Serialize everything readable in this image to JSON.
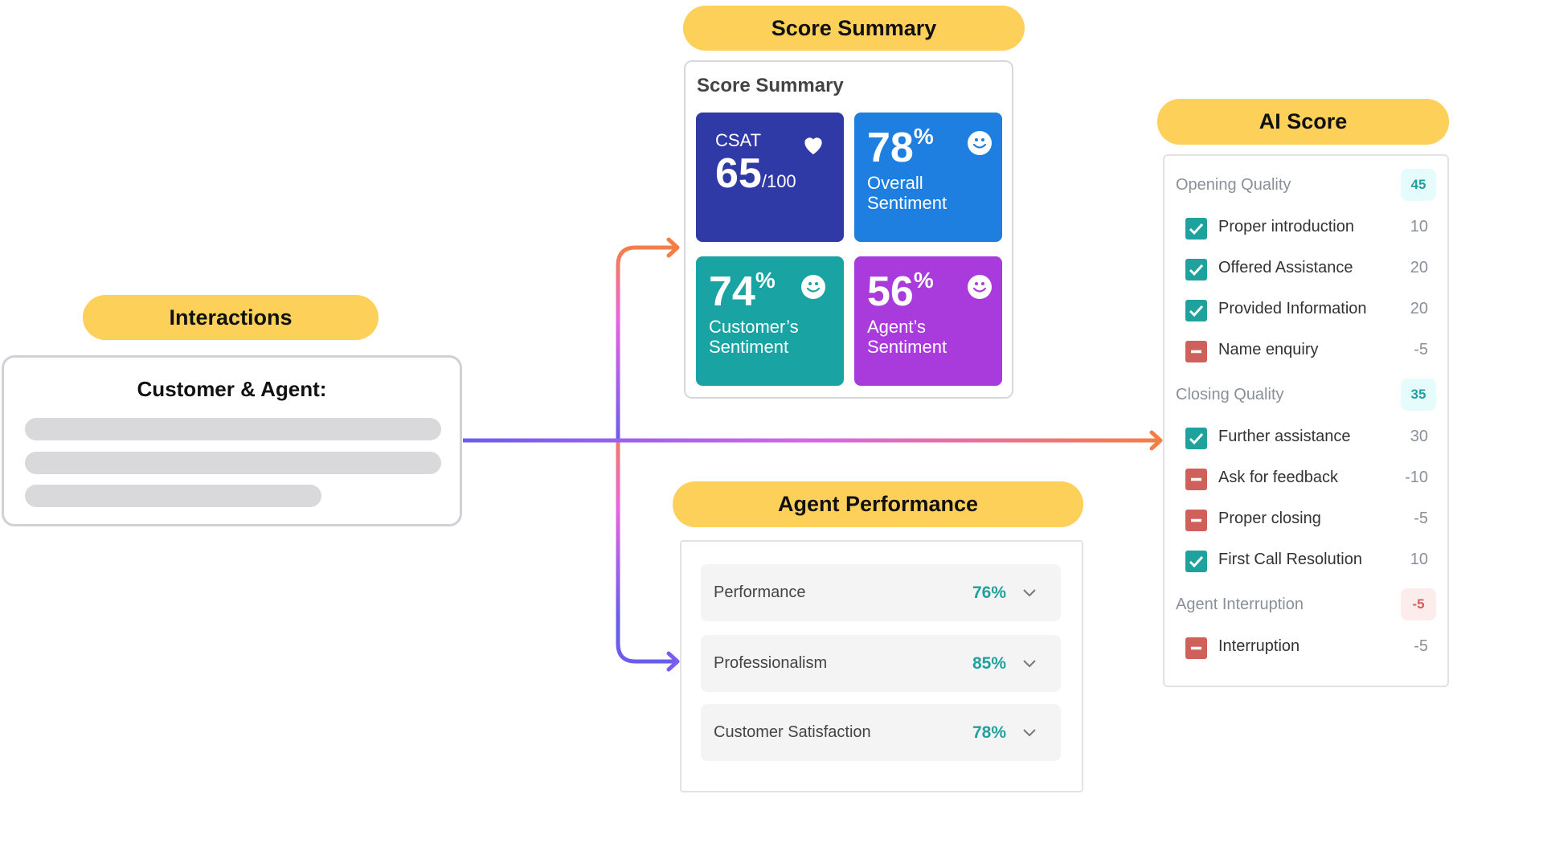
{
  "interactions": {
    "pill": "Interactions",
    "title": "Customer & Agent:"
  },
  "score_summary": {
    "pill": "Score Summary",
    "title": "Score Summary",
    "csat": {
      "label": "CSAT",
      "value": "65",
      "max": "/100",
      "icon": "heart-icon",
      "color": "#2f3aa6"
    },
    "overall": {
      "value": "78",
      "unit": "%",
      "label": "Overall Sentiment",
      "icon": "smiley-icon",
      "color": "#1f7fe0"
    },
    "customer": {
      "value": "74",
      "unit": "%",
      "label": "Customer’s Sentiment",
      "icon": "smiley-icon",
      "color": "#1aa3a3"
    },
    "agent": {
      "value": "56",
      "unit": "%",
      "label": "Agent’s Sentiment",
      "icon": "smiley-icon",
      "color": "#a93bdc"
    }
  },
  "agent_performance": {
    "pill": "Agent Performance",
    "rows": [
      {
        "name": "Performance",
        "value": "76%"
      },
      {
        "name": "Professionalism",
        "value": "85%"
      },
      {
        "name": "Customer Satisfaction",
        "value": "78%"
      }
    ]
  },
  "ai_score": {
    "pill": "AI Score",
    "sections": [
      {
        "name": "Opening Quality",
        "score": "45",
        "tone": "positive",
        "items": [
          {
            "label": "Proper introduction",
            "value": "10",
            "checked": true
          },
          {
            "label": "Offered Assistance",
            "value": "20",
            "checked": true
          },
          {
            "label": "Provided Information",
            "value": "20",
            "checked": true
          },
          {
            "label": "Name enquiry",
            "value": "-5",
            "checked": false
          }
        ]
      },
      {
        "name": "Closing Quality",
        "score": "35",
        "tone": "positive",
        "items": [
          {
            "label": "Further assistance",
            "value": "30",
            "checked": true
          },
          {
            "label": "Ask for feedback",
            "value": "-10",
            "checked": false
          },
          {
            "label": "Proper closing",
            "value": "-5",
            "checked": false
          },
          {
            "label": "First Call Resolution",
            "value": "10",
            "checked": true
          }
        ]
      },
      {
        "name": "Agent Interruption",
        "score": "-5",
        "tone": "negative",
        "items": [
          {
            "label": "Interruption",
            "value": "-5",
            "checked": false
          }
        ]
      }
    ]
  },
  "colors": {
    "pill": "#fdd05a",
    "teal": "#1fa19d",
    "red": "#d0605c",
    "arrow_start": "#6b5cf0",
    "arrow_mid": "#e868d8",
    "arrow_end": "#f57e45"
  }
}
